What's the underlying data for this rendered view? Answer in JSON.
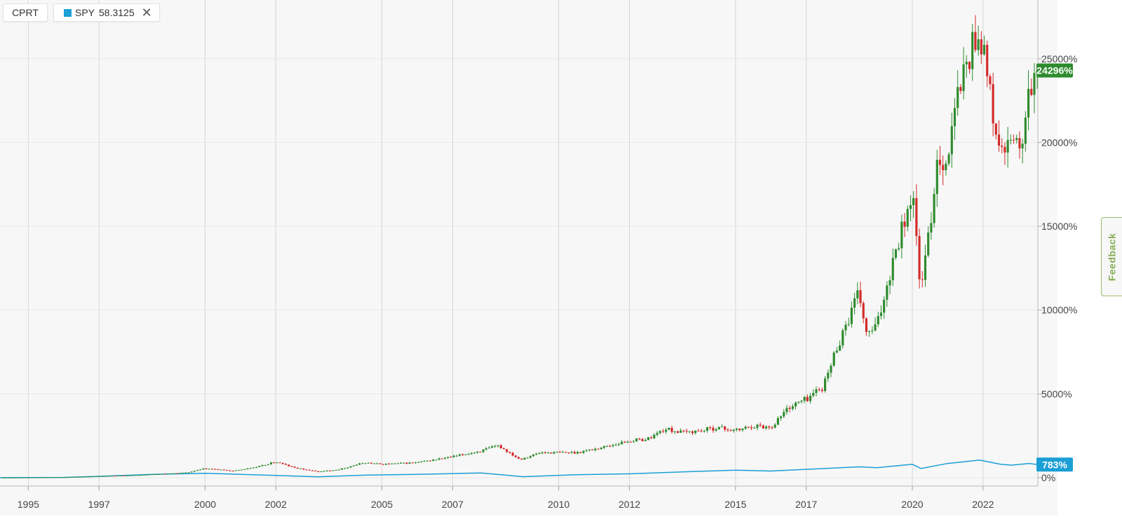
{
  "legend": {
    "primary": {
      "label": "CPRT"
    },
    "secondary": {
      "label": "SPY",
      "value": "58.3125",
      "color": "#1a9fd6",
      "close_icon": "close-icon"
    }
  },
  "feedback": {
    "label": "Feedback"
  },
  "chart_data": {
    "type": "candlestick",
    "title": "",
    "xlabel": "",
    "ylabel": "",
    "x_range": [
      1994.2,
      2023.55
    ],
    "ylim": [
      -500,
      28500
    ],
    "grid": true,
    "x_ticks": [
      {
        "label": "1995",
        "year": 1995.0
      },
      {
        "label": "1997",
        "year": 1997.0
      },
      {
        "label": "2000",
        "year": 2000.0
      },
      {
        "label": "2002",
        "year": 2002.0
      },
      {
        "label": "2005",
        "year": 2005.0
      },
      {
        "label": "2007",
        "year": 2007.0
      },
      {
        "label": "2010",
        "year": 2010.0
      },
      {
        "label": "2012",
        "year": 2012.0
      },
      {
        "label": "2015",
        "year": 2015.0
      },
      {
        "label": "2017",
        "year": 2017.0
      },
      {
        "label": "2020",
        "year": 2020.0
      },
      {
        "label": "2022",
        "year": 2022.0
      }
    ],
    "y_ticks": [
      {
        "label": "0%",
        "value": 0
      },
      {
        "label": "5000%",
        "value": 5000
      },
      {
        "label": "10000%",
        "value": 10000
      },
      {
        "label": "15000%",
        "value": 15000
      },
      {
        "label": "20000%",
        "value": 20000
      },
      {
        "label": "25000%",
        "value": 25000
      }
    ],
    "series": [
      {
        "name": "CPRT",
        "style": "candles",
        "up_color": "#2e8b2e",
        "down_color": "#d22a2a",
        "last_label": "24296%",
        "last_value": 24296,
        "close_path": [
          [
            1994.2,
            0
          ],
          [
            1996.0,
            30
          ],
          [
            1998.0,
            150
          ],
          [
            1999.5,
            300
          ],
          [
            2000.0,
            550
          ],
          [
            2000.8,
            400
          ],
          [
            2001.5,
            650
          ],
          [
            2002.0,
            950
          ],
          [
            2002.5,
            600
          ],
          [
            2003.2,
            350
          ],
          [
            2003.8,
            500
          ],
          [
            2004.5,
            900
          ],
          [
            2005.0,
            800
          ],
          [
            2006.0,
            900
          ],
          [
            2007.0,
            1250
          ],
          [
            2007.8,
            1600
          ],
          [
            2008.3,
            1900
          ],
          [
            2008.9,
            1100
          ],
          [
            2009.5,
            1500
          ],
          [
            2010.5,
            1500
          ],
          [
            2011.0,
            1700
          ],
          [
            2012.0,
            2200
          ],
          [
            2012.5,
            2300
          ],
          [
            2013.0,
            2900
          ],
          [
            2013.5,
            2700
          ],
          [
            2014.0,
            2800
          ],
          [
            2014.5,
            3000
          ],
          [
            2015.0,
            2800
          ],
          [
            2015.5,
            3100
          ],
          [
            2016.0,
            3000
          ],
          [
            2016.5,
            4200
          ],
          [
            2017.0,
            4700
          ],
          [
            2017.5,
            5500
          ],
          [
            2017.9,
            8000
          ],
          [
            2018.5,
            11000
          ],
          [
            2018.7,
            8500
          ],
          [
            2019.0,
            9000
          ],
          [
            2019.5,
            13500
          ],
          [
            2020.0,
            17000
          ],
          [
            2020.25,
            11000
          ],
          [
            2020.5,
            15000
          ],
          [
            2020.7,
            19000
          ],
          [
            2021.0,
            19000
          ],
          [
            2021.3,
            23000
          ],
          [
            2021.8,
            26500
          ],
          [
            2022.0,
            26000
          ],
          [
            2022.3,
            21000
          ],
          [
            2022.6,
            19000
          ],
          [
            2022.9,
            20500
          ],
          [
            2023.1,
            19000
          ],
          [
            2023.3,
            23000
          ],
          [
            2023.55,
            24296
          ]
        ]
      },
      {
        "name": "SPY",
        "style": "line",
        "color": "#1a9fd6",
        "last_label": "783%",
        "last_value": 783,
        "points": [
          [
            1994.2,
            0
          ],
          [
            1996.0,
            20
          ],
          [
            1997.0,
            80
          ],
          [
            1998.5,
            200
          ],
          [
            2000.0,
            260
          ],
          [
            2001.0,
            200
          ],
          [
            2002.5,
            100
          ],
          [
            2003.2,
            50
          ],
          [
            2004.5,
            150
          ],
          [
            2006.0,
            200
          ],
          [
            2007.8,
            280
          ],
          [
            2008.5,
            150
          ],
          [
            2009.0,
            60
          ],
          [
            2010.5,
            180
          ],
          [
            2012.0,
            230
          ],
          [
            2013.5,
            350
          ],
          [
            2015.0,
            450
          ],
          [
            2016.0,
            400
          ],
          [
            2017.0,
            500
          ],
          [
            2018.5,
            650
          ],
          [
            2019.0,
            600
          ],
          [
            2020.0,
            800
          ],
          [
            2020.25,
            550
          ],
          [
            2021.0,
            850
          ],
          [
            2021.9,
            1050
          ],
          [
            2022.5,
            800
          ],
          [
            2022.8,
            750
          ],
          [
            2023.3,
            850
          ],
          [
            2023.55,
            783
          ]
        ]
      }
    ]
  }
}
